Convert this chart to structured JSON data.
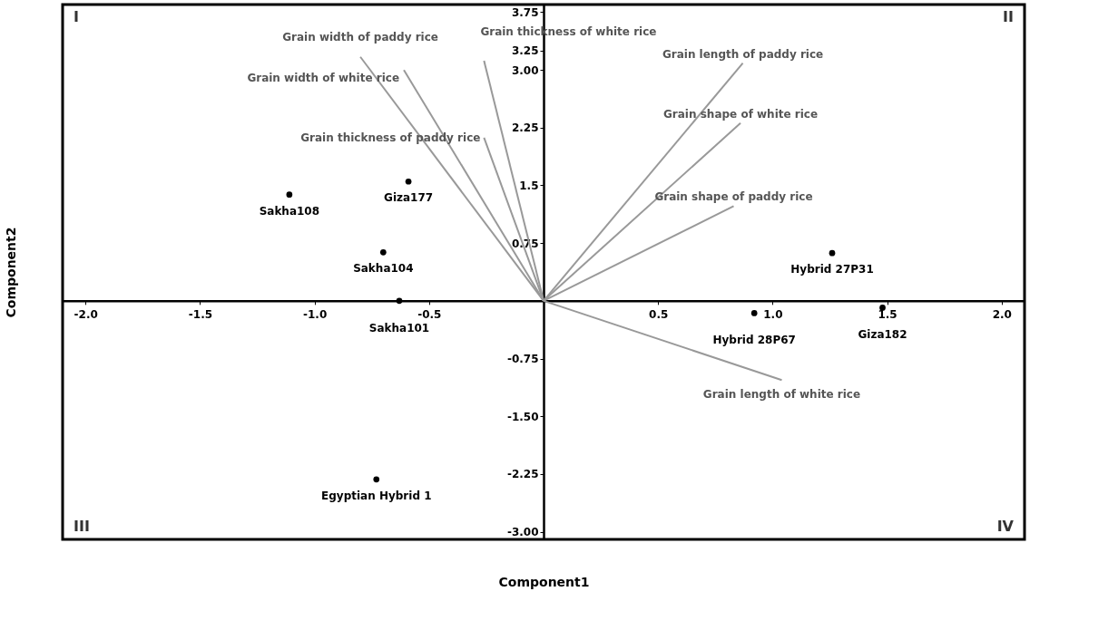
{
  "chart_data": {
    "type": "scatter",
    "xlabel": "Component1",
    "ylabel": "Component2",
    "xlim": [
      -2.1,
      2.1
    ],
    "ylim": [
      -3.1,
      3.85
    ],
    "xticks": [
      {
        "value": -2,
        "label": "-2.0"
      },
      -1.5,
      {
        "value": -1,
        "label": "-1.0"
      },
      -0.5,
      0.5,
      {
        "value": 1,
        "label": "1.0"
      },
      1.5,
      {
        "value": 2,
        "label": "2.0"
      }
    ],
    "yticks": [
      3.75,
      3.25,
      {
        "value": 3,
        "label": "3.00"
      },
      2.25,
      1.5,
      0.75,
      -0.75,
      {
        "value": -1.5,
        "label": "-1.50"
      },
      -2.25,
      {
        "value": -3,
        "label": "-3.00"
      }
    ],
    "grid": false,
    "line_style": "solid",
    "series": [
      {
        "marker": "circle",
        "color": "#000000",
        "x": [
          -1.11,
          -0.59,
          -0.7,
          -0.63,
          -0.73,
          0.92,
          1.26,
          1.48
        ],
        "values": [
          1.38,
          1.55,
          0.63,
          0.0,
          -2.32,
          -0.16,
          0.62,
          -0.09
        ]
      },
      {
        "type": "line",
        "name": "Grain width of paddy rice",
        "color": "#999999",
        "x": [
          0,
          -0.8
        ],
        "values": [
          0,
          3.17
        ]
      },
      {
        "type": "line",
        "name": "Grain width of white rice",
        "color": "#999999",
        "x": [
          0,
          -0.61
        ],
        "values": [
          0,
          3.0
        ]
      },
      {
        "type": "line",
        "name": "Grain thickness of white rice",
        "color": "#999999",
        "x": [
          0,
          -0.26
        ],
        "values": [
          0,
          3.12
        ]
      },
      {
        "type": "line",
        "name": "Grain thickness of paddy rice",
        "color": "#999999",
        "x": [
          0,
          -0.26
        ],
        "values": [
          0,
          2.12
        ]
      },
      {
        "type": "line",
        "name": "Grain length of paddy rice",
        "color": "#999999",
        "x": [
          0,
          0.87
        ],
        "values": [
          0,
          3.09
        ]
      },
      {
        "type": "line",
        "name": "Grain shape of white rice",
        "color": "#999999",
        "x": [
          0,
          0.86
        ],
        "values": [
          0,
          2.31
        ]
      },
      {
        "type": "line",
        "name": "Grain shape of paddy rice",
        "color": "#999999",
        "x": [
          0,
          0.83
        ],
        "values": [
          0,
          1.23
        ]
      },
      {
        "type": "line",
        "name": "Grain length of white rice",
        "color": "#999999",
        "x": [
          0,
          1.04
        ],
        "values": [
          0,
          -1.03
        ]
      }
    ],
    "annotations": [
      {
        "text": "Sakha108",
        "x": -1.11,
        "y": 1.38
      },
      {
        "text": "Giza177",
        "x": -0.59,
        "y": 1.55
      },
      {
        "text": "Sakha104",
        "x": -0.7,
        "y": 0.63
      },
      {
        "text": "Sakha101",
        "x": -0.63,
        "y": 0.0
      },
      {
        "text": "Egyptian Hybrid 1",
        "x": -0.73,
        "y": -2.32
      },
      {
        "text": "Hybrid 28P67",
        "x": 0.92,
        "y": -0.16
      },
      {
        "text": "Hybrid 27P31",
        "x": 1.26,
        "y": 0.62
      },
      {
        "text": "Giza182",
        "x": 1.48,
        "y": -0.09
      },
      "I",
      "II",
      "III",
      "IV"
    ]
  }
}
